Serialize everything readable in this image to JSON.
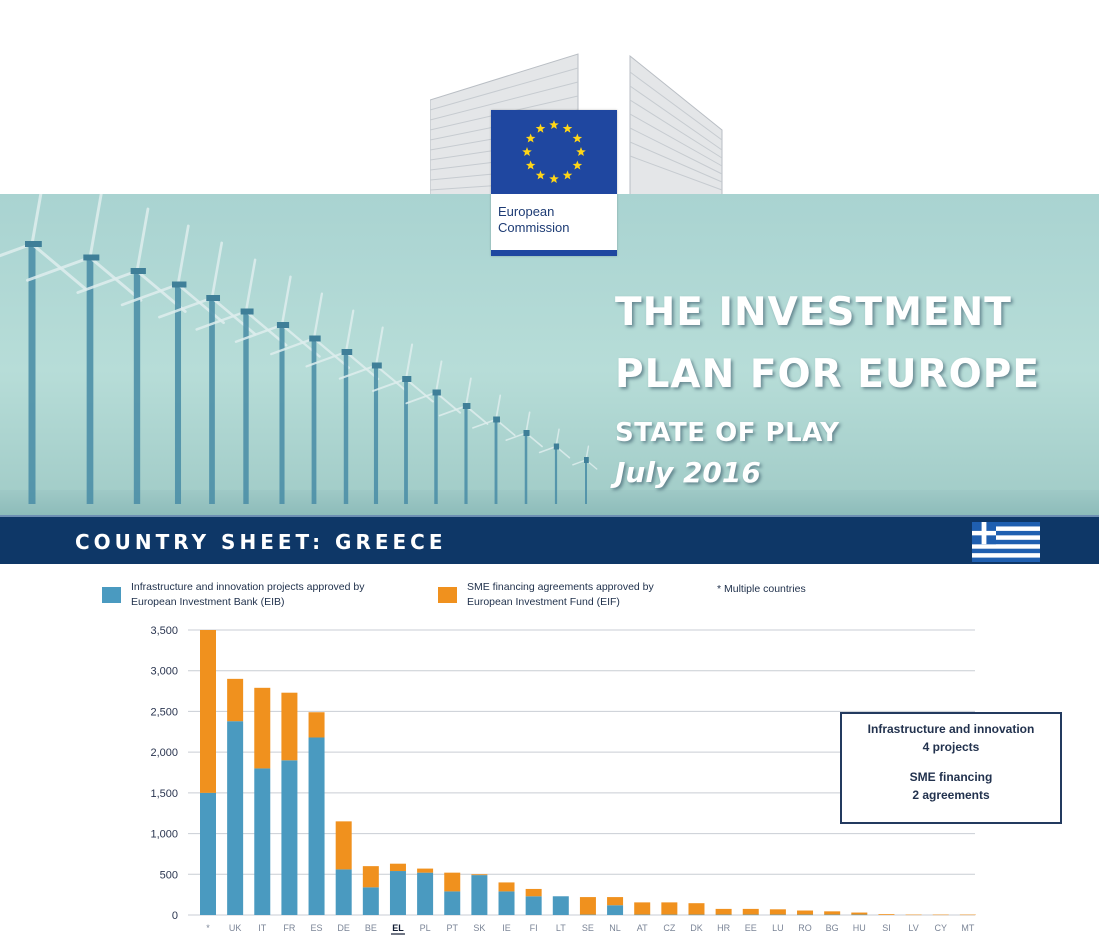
{
  "hero": {
    "title_line1": "THE INVESTMENT",
    "title_line2": "PLAN FOR EUROPE",
    "subtitle": "STATE OF PLAY",
    "date": "July 2016"
  },
  "logo": {
    "line1": "European",
    "line2": "Commission"
  },
  "banner": {
    "label": "COUNTRY SHEET: GREECE"
  },
  "legend": {
    "eib_line1": "Infrastructure and innovation projects approved by",
    "eib_line2": "European Investment Bank (EIB)",
    "eif_line1": "SME financing agreements approved by",
    "eif_line2": "European Investment Fund (EIF)",
    "multi": "* Multiple countries"
  },
  "infobox": {
    "line1": "Infrastructure and innovation",
    "line2": "4 projects",
    "line3": "SME financing",
    "line4": "2 agreements"
  },
  "colors": {
    "eib": "#4a9ac0",
    "eif": "#f0911e",
    "banner": "#0e3767",
    "eu_blue": "#1f47a0",
    "eu_star": "#ffd617"
  },
  "chart_data": {
    "type": "bar",
    "stacked": true,
    "categories": [
      "*",
      "UK",
      "IT",
      "FR",
      "ES",
      "DE",
      "BE",
      "EL",
      "PL",
      "PT",
      "SK",
      "IE",
      "FI",
      "LT",
      "SE",
      "NL",
      "AT",
      "CZ",
      "DK",
      "HR",
      "EE",
      "LU",
      "RO",
      "BG",
      "HU",
      "SI",
      "LV",
      "CY",
      "MT"
    ],
    "highlight_category": "EL",
    "series": [
      {
        "name": "Infrastructure and innovation projects approved by European Investment Bank (EIB)",
        "values": [
          1500,
          2380,
          1800,
          1900,
          2180,
          560,
          340,
          540,
          520,
          290,
          490,
          290,
          230,
          230,
          5,
          120,
          5,
          5,
          5,
          5,
          5,
          5,
          5,
          5,
          5,
          0,
          0,
          0,
          0
        ]
      },
      {
        "name": "SME financing agreements approved by European Investment Fund (EIF)",
        "values": [
          2000,
          520,
          990,
          830,
          310,
          590,
          260,
          90,
          50,
          230,
          10,
          110,
          90,
          0,
          215,
          100,
          150,
          150,
          140,
          70,
          70,
          65,
          50,
          40,
          25,
          10,
          5,
          5,
          5
        ]
      }
    ],
    "yticks": [
      "0",
      "500",
      "1,000",
      "1,500",
      "2,000",
      "2,500",
      "3,000",
      "3,500"
    ],
    "ylim": [
      0,
      3500
    ],
    "grid": true
  }
}
